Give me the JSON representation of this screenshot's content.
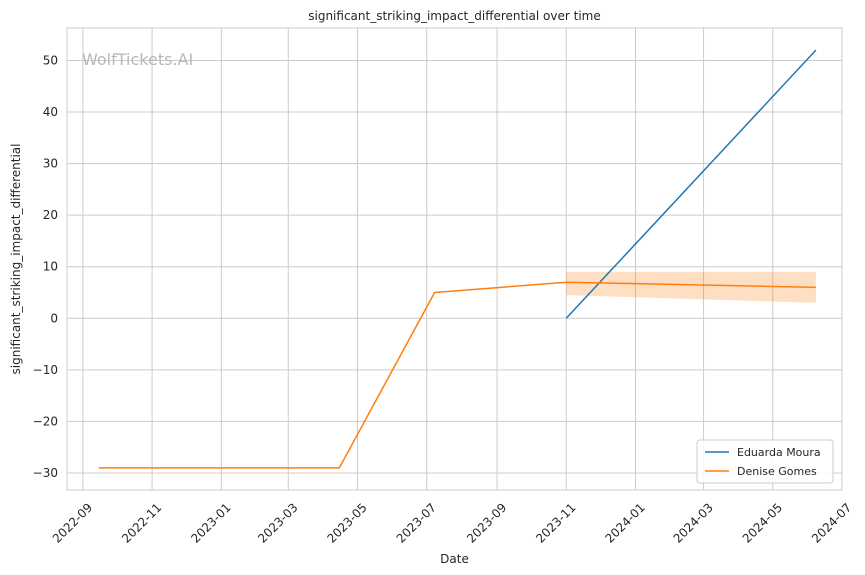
{
  "watermark": "WolfTickets.AI",
  "chart_data": {
    "type": "line",
    "title": "significant_striking_impact_differential over time",
    "xlabel": "Date",
    "ylabel": "significant_striking_impact_differential",
    "x_ticks": [
      "2022-09",
      "2022-11",
      "2023-01",
      "2023-03",
      "2023-05",
      "2023-07",
      "2023-09",
      "2023-11",
      "2024-01",
      "2024-03",
      "2024-05",
      "2024-07"
    ],
    "y_ticks": [
      -30,
      -20,
      -10,
      0,
      10,
      20,
      30,
      40,
      50
    ],
    "ylim": [
      -33.3,
      56.3
    ],
    "xlim": [
      "2022-08-18",
      "2024-07-01"
    ],
    "grid": true,
    "legend_position": "bottom-right",
    "series": [
      {
        "name": "Eduarda Moura",
        "color": "#1f77b4",
        "points": [
          {
            "x": "2023-11-01",
            "y": 0
          },
          {
            "x": "2024-06-08",
            "y": 52
          }
        ]
      },
      {
        "name": "Denise Gomes",
        "color": "#ff7f0e",
        "points": [
          {
            "x": "2022-09-15",
            "y": -29
          },
          {
            "x": "2023-04-15",
            "y": -29
          },
          {
            "x": "2023-07-08",
            "y": 5
          },
          {
            "x": "2023-11-01",
            "y": 7
          },
          {
            "x": "2024-06-08",
            "y": 6
          }
        ],
        "band": [
          {
            "x": "2023-11-01",
            "low": 4.5,
            "high": 9
          },
          {
            "x": "2024-06-08",
            "low": 3,
            "high": 9
          }
        ]
      }
    ]
  }
}
